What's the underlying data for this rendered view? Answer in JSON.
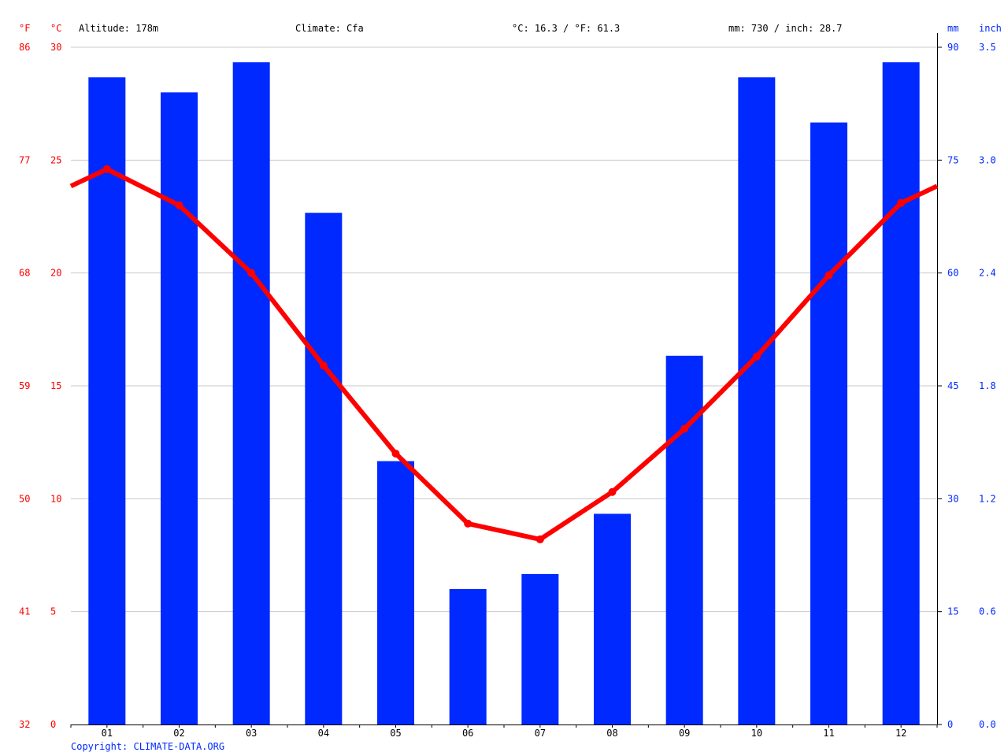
{
  "header": {
    "unit_f": "°F",
    "unit_c": "°C",
    "altitude": "Altitude: 178m",
    "climate": "Climate: Cfa",
    "temperature": "°C: 16.3 / °F: 61.3",
    "precipitation": "mm: 730 / inch: 28.7",
    "unit_mm": "mm",
    "unit_inch": "inch"
  },
  "copyright": "Copyright: CLIMATE-DATA.ORG",
  "colors": {
    "temperature": "#ff0000",
    "precipitation": "#0029ff",
    "grid": "#c8c8c8",
    "text": "#000000"
  },
  "chart_data": {
    "type": "bar",
    "categories": [
      "01",
      "02",
      "03",
      "04",
      "05",
      "06",
      "07",
      "08",
      "09",
      "10",
      "11",
      "12"
    ],
    "series": [
      {
        "type": "bar",
        "axis": "right",
        "values": [
          86,
          84,
          88,
          68,
          35,
          18,
          20,
          28,
          49,
          86,
          80,
          88
        ]
      },
      {
        "type": "line",
        "axis": "left",
        "values": [
          24.6,
          23.0,
          20.0,
          15.9,
          12.0,
          8.9,
          8.2,
          10.3,
          13.1,
          16.3,
          19.9,
          23.1
        ]
      }
    ],
    "left_axis_c": {
      "min": 0,
      "max": 30,
      "ticks": [
        "0",
        "5",
        "10",
        "15",
        "20",
        "25",
        "30"
      ]
    },
    "left_axis_f": {
      "ticks": [
        "32",
        "41",
        "50",
        "59",
        "68",
        "77",
        "86"
      ]
    },
    "right_axis_mm": {
      "min": 0,
      "max": 90,
      "ticks": [
        "0",
        "15",
        "30",
        "45",
        "60",
        "75",
        "90"
      ]
    },
    "right_axis_inch": {
      "ticks": [
        "0.0",
        "0.6",
        "1.2",
        "1.8",
        "2.4",
        "3.0",
        "3.5"
      ]
    },
    "grid": true
  }
}
